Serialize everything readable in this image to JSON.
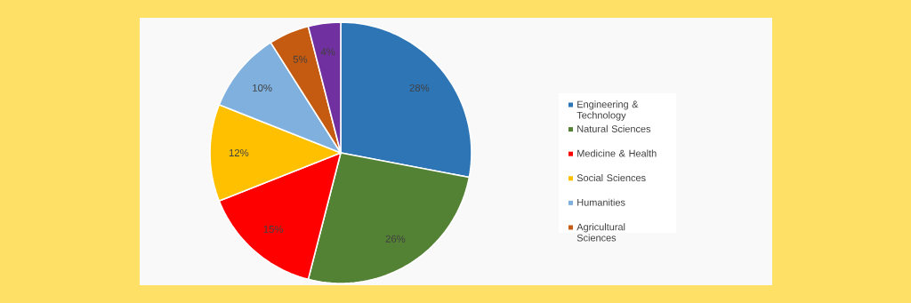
{
  "chart_data": {
    "type": "pie",
    "categories": [
      "Engineering & Technology",
      "Natural Sciences",
      "Medicine & Health",
      "Social Sciences",
      "Humanities",
      "Agricultural Sciences",
      null
    ],
    "values": [
      28,
      26,
      15,
      12,
      10,
      5,
      4
    ],
    "colors": [
      "#2e75b6",
      "#548235",
      "#ff0000",
      "#ffc000",
      "#7fb0de",
      "#c55a11",
      "#7030a0"
    ],
    "value_labels": [
      "28%",
      "26%",
      "15%",
      "12%",
      "10%",
      "5%",
      "4%"
    ],
    "legend": "right"
  }
}
